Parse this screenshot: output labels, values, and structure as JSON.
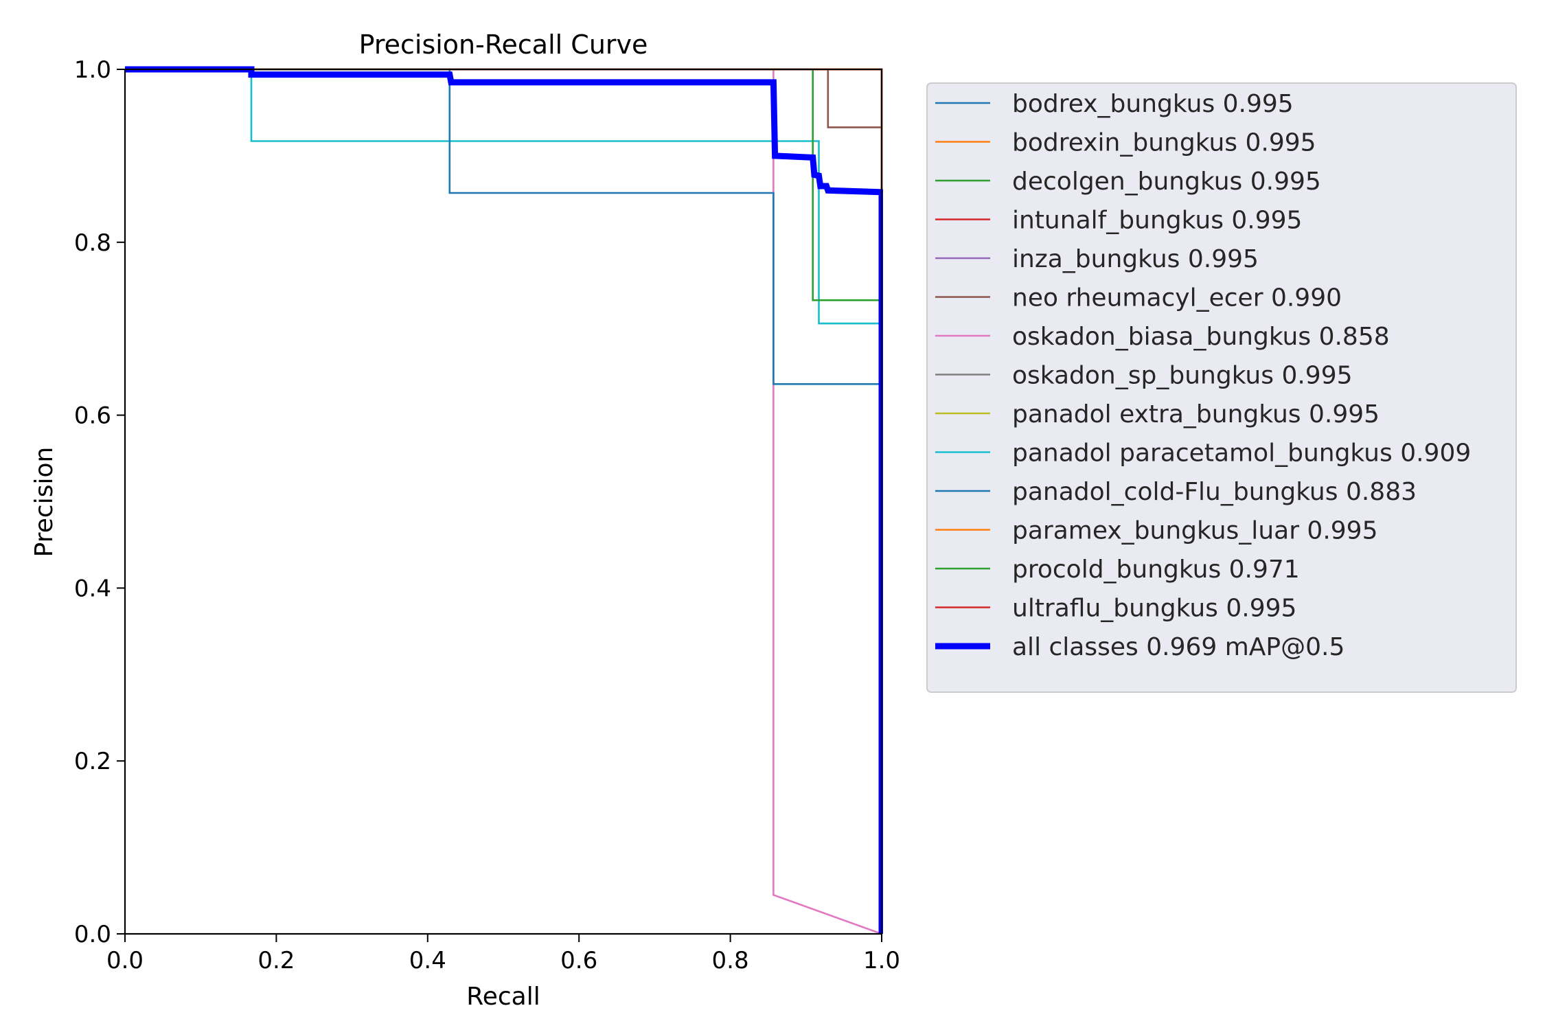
{
  "chart_data": {
    "type": "line",
    "title": "Precision-Recall Curve",
    "xlabel": "Recall",
    "ylabel": "Precision",
    "xlim": [
      0,
      1
    ],
    "ylim": [
      0,
      1
    ],
    "xticks": [
      "0.0",
      "0.2",
      "0.4",
      "0.6",
      "0.8",
      "1.0"
    ],
    "yticks": [
      "0.0",
      "0.2",
      "0.4",
      "0.6",
      "0.8",
      "1.0"
    ],
    "grid": false,
    "legend_position": "outside-right-top",
    "series": [
      {
        "name": "bodrex_bungkus 0.995",
        "color": "#1f77b4",
        "width": "thin",
        "points": [
          [
            0,
            1
          ],
          [
            0.995,
            1
          ],
          [
            1.0,
            1
          ],
          [
            1.0,
            0
          ]
        ]
      },
      {
        "name": "bodrexin_bungkus 0.995",
        "color": "#ff7f0e",
        "width": "thin",
        "points": [
          [
            0,
            1
          ],
          [
            1.0,
            1
          ],
          [
            1.0,
            0
          ]
        ]
      },
      {
        "name": "decolgen_bungkus 0.995",
        "color": "#2ca02c",
        "width": "thin",
        "points": [
          [
            0,
            1
          ],
          [
            1.0,
            1
          ],
          [
            1.0,
            0
          ]
        ]
      },
      {
        "name": "intunalf_bungkus 0.995",
        "color": "#d62728",
        "width": "thin",
        "points": [
          [
            0,
            1
          ],
          [
            1.0,
            1
          ],
          [
            1.0,
            0
          ]
        ]
      },
      {
        "name": "inza_bungkus 0.995",
        "color": "#9467bd",
        "width": "thin",
        "points": [
          [
            0,
            1
          ],
          [
            1.0,
            1
          ],
          [
            1.0,
            0
          ]
        ]
      },
      {
        "name": "neo rheumacyl_ecer 0.990",
        "color": "#8c564b",
        "width": "thin",
        "points": [
          [
            0,
            1
          ],
          [
            0.929,
            1
          ],
          [
            0.929,
            0.933
          ],
          [
            1.0,
            0.933
          ],
          [
            1.0,
            0
          ]
        ]
      },
      {
        "name": "oskadon_biasa_bungkus 0.858",
        "color": "#e377c2",
        "width": "thin",
        "points": [
          [
            0,
            1
          ],
          [
            0.857,
            1
          ],
          [
            0.857,
            0.045
          ],
          [
            1.0,
            0
          ]
        ]
      },
      {
        "name": "oskadon_sp_bungkus 0.995",
        "color": "#7f7f7f",
        "width": "thin",
        "points": [
          [
            0,
            1
          ],
          [
            1.0,
            1
          ],
          [
            1.0,
            0
          ]
        ]
      },
      {
        "name": "panadol extra_bungkus 0.995",
        "color": "#bcbd22",
        "width": "thin",
        "points": [
          [
            0,
            1
          ],
          [
            1.0,
            1
          ],
          [
            1.0,
            0
          ]
        ]
      },
      {
        "name": "panadol paracetamol_bungkus 0.909",
        "color": "#17becf",
        "width": "thin",
        "points": [
          [
            0,
            1
          ],
          [
            0.167,
            1
          ],
          [
            0.167,
            0.917
          ],
          [
            0.917,
            0.917
          ],
          [
            0.917,
            0.706
          ],
          [
            1.0,
            0.706
          ],
          [
            1.0,
            0
          ]
        ]
      },
      {
        "name": "panadol_cold-Flu_bungkus 0.883",
        "color": "#1f77b4",
        "width": "thin",
        "points": [
          [
            0,
            1
          ],
          [
            0.429,
            1
          ],
          [
            0.429,
            0.857
          ],
          [
            0.857,
            0.857
          ],
          [
            0.857,
            0.636
          ],
          [
            1.0,
            0.636
          ],
          [
            1.0,
            0
          ]
        ]
      },
      {
        "name": "paramex_bungkus_luar 0.995",
        "color": "#ff7f0e",
        "width": "thin",
        "points": [
          [
            0,
            1
          ],
          [
            1.0,
            1
          ],
          [
            1.0,
            0
          ]
        ]
      },
      {
        "name": "procold_bungkus 0.971",
        "color": "#2ca02c",
        "width": "thin",
        "points": [
          [
            0,
            1
          ],
          [
            0.909,
            1
          ],
          [
            0.909,
            0.733
          ],
          [
            1.0,
            0.733
          ],
          [
            1.0,
            0
          ]
        ]
      },
      {
        "name": "ultraflu_bungkus 0.995",
        "color": "#d62728",
        "width": "thin",
        "points": [
          [
            0,
            1
          ],
          [
            1.0,
            1
          ],
          [
            1.0,
            0
          ]
        ]
      },
      {
        "name": "all classes 0.969 mAP@0.5",
        "color": "#0000ff",
        "width": "thick",
        "points": [
          [
            0,
            1
          ],
          [
            0.167,
            1
          ],
          [
            0.167,
            0.994
          ],
          [
            0.429,
            0.994
          ],
          [
            0.431,
            0.985
          ],
          [
            0.857,
            0.985
          ],
          [
            0.859,
            0.9
          ],
          [
            0.909,
            0.898
          ],
          [
            0.911,
            0.878
          ],
          [
            0.917,
            0.877
          ],
          [
            0.919,
            0.865
          ],
          [
            0.927,
            0.865
          ],
          [
            0.929,
            0.86
          ],
          [
            1.0,
            0.858
          ],
          [
            1.0,
            0
          ]
        ]
      }
    ]
  }
}
